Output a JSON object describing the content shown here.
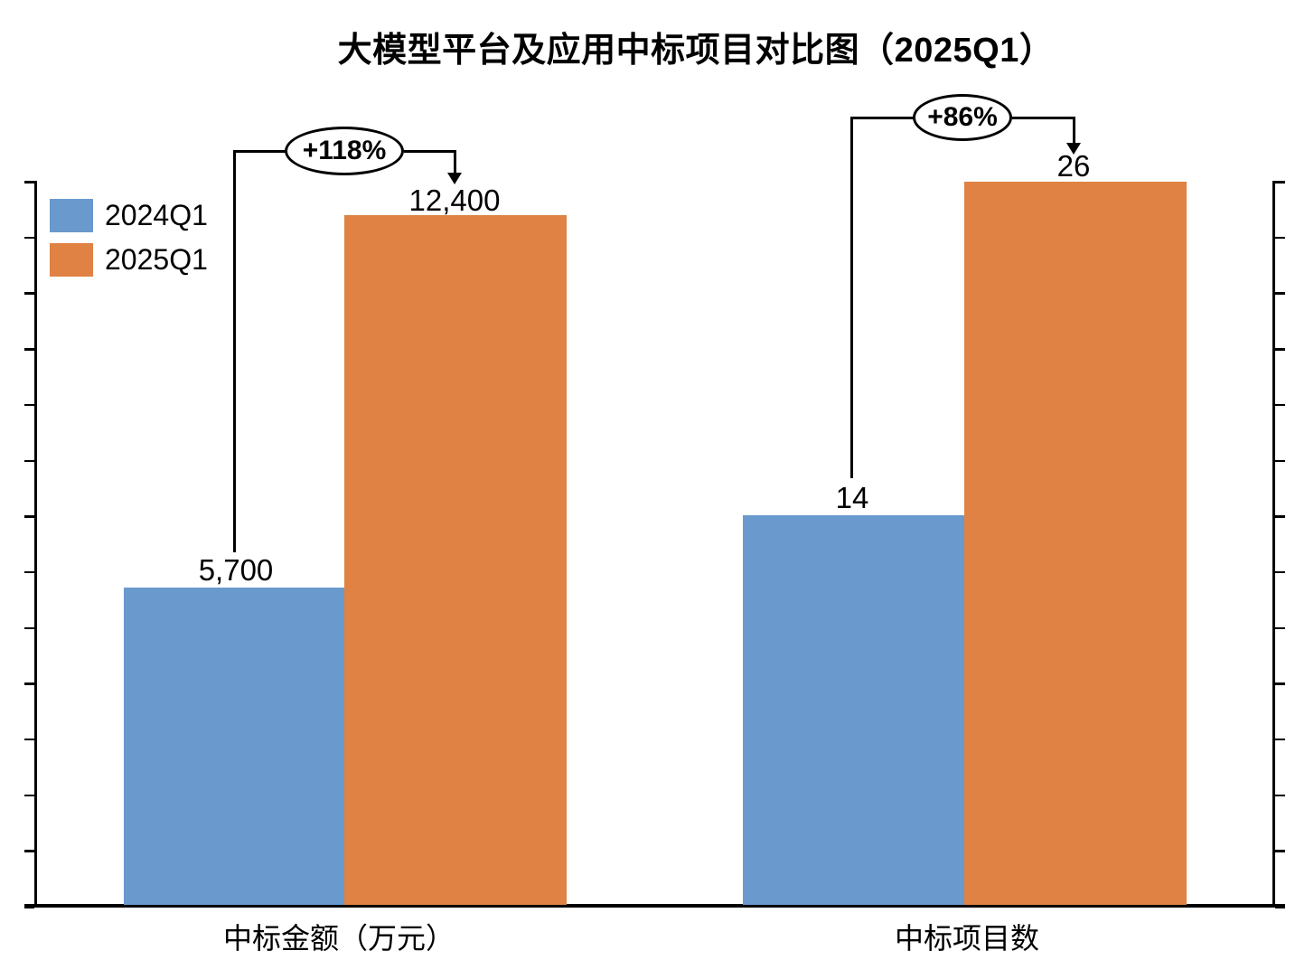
{
  "chart_data": {
    "type": "bar",
    "title": "大模型平台及应用中标项目对比图（2025Q1）",
    "categories": [
      "中标金额（万元）",
      "中标项目数"
    ],
    "category_axes": [
      "left",
      "right"
    ],
    "series": [
      {
        "name": "2024Q1",
        "color": "#6A99CE",
        "values": [
          5700,
          14
        ],
        "labels": [
          "5,700",
          "14"
        ]
      },
      {
        "name": "2025Q1",
        "color": "#DF8244",
        "values": [
          12400,
          26
        ],
        "labels": [
          "12,400",
          "26"
        ]
      }
    ],
    "annotations": [
      {
        "text": "+118%",
        "category": "中标金额（万元）",
        "from_value": 5700,
        "to_value": 12400
      },
      {
        "text": "+86%",
        "category": "中标项目数",
        "from_value": 14,
        "to_value": 26
      }
    ],
    "axes": {
      "left": {
        "min": 0,
        "max": 13000,
        "tick_step": 1000,
        "tick_labels_visible": false
      },
      "right": {
        "min": 0,
        "max": 26,
        "tick_step": 2,
        "tick_labels_visible": false
      }
    },
    "grid": false,
    "legend_position": "top-left",
    "colors": {
      "bar_2024": "#6A99CE",
      "bar_2025": "#DF8244",
      "axis": "#000000",
      "text": "#000000"
    }
  }
}
